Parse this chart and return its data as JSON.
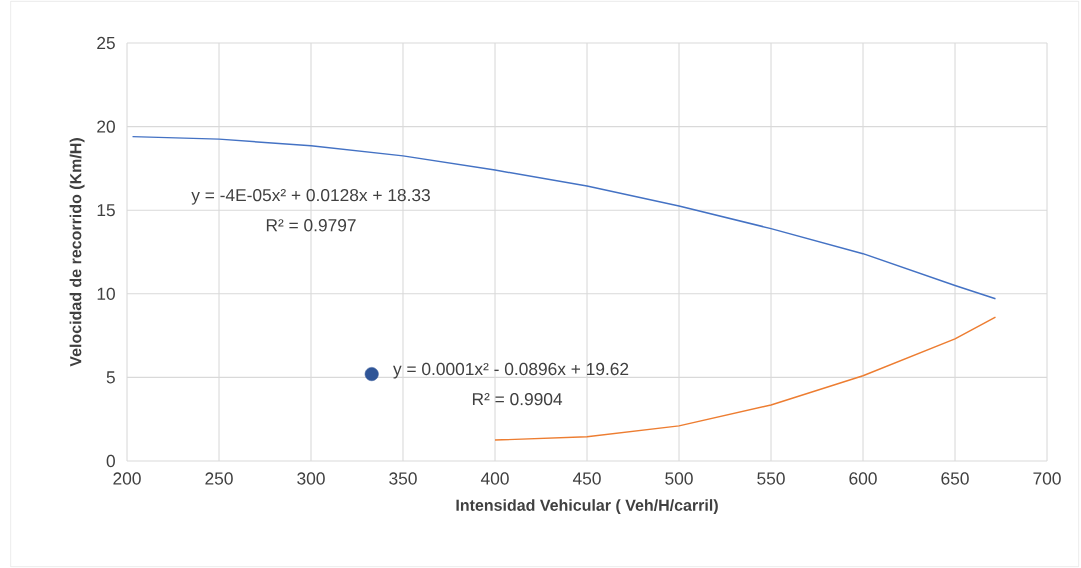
{
  "chart_data": {
    "type": "line",
    "xlabel": "Intensidad Vehicular ( Veh/H/carril)",
    "ylabel": "Velocidad de recorrido (Km/H)",
    "xlim": [
      200,
      700
    ],
    "xticks": [
      200,
      250,
      300,
      350,
      400,
      450,
      500,
      550,
      600,
      650,
      700
    ],
    "ylim": [
      0,
      25
    ],
    "yticks": [
      0,
      5,
      10,
      15,
      20,
      25
    ],
    "grid": true,
    "series": [
      {
        "color": "#4472c4",
        "marker": "none",
        "x": [
          203,
          250,
          300,
          350,
          400,
          450,
          500,
          550,
          600,
          650,
          672
        ],
        "values": [
          19.4,
          19.25,
          18.85,
          18.25,
          17.4,
          16.45,
          15.25,
          13.9,
          12.4,
          10.5,
          9.7
        ]
      },
      {
        "color": "#ed7d31",
        "marker": "none",
        "x": [
          400,
          450,
          500,
          550,
          600,
          650,
          672
        ],
        "values": [
          1.25,
          1.45,
          2.1,
          3.35,
          5.1,
          7.3,
          8.6
        ]
      },
      {
        "type": "scatter",
        "color": "#2f5597",
        "marker": "circle",
        "x": [
          333
        ],
        "values": [
          5.2
        ]
      }
    ],
    "annotations": [
      "y = -4E-05x² + 0.0128x + 18.33",
      "R² = 0.9797",
      "y = 0.0001x² - 0.0896x + 19.62",
      "R² = 0.9904"
    ]
  }
}
